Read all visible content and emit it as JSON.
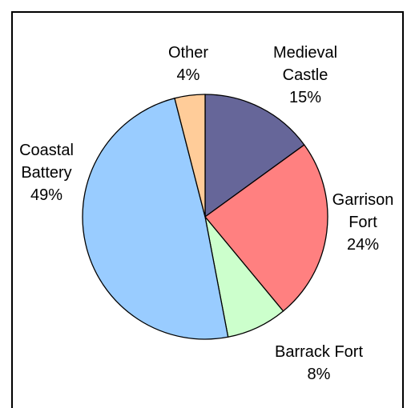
{
  "chart_data": {
    "type": "pie",
    "title": "",
    "slices": [
      {
        "label": "Medieval Castle",
        "label_lines": [
          "Medieval",
          "Castle"
        ],
        "value": 15,
        "value_text": "15%",
        "color": "#666699"
      },
      {
        "label": "Garrison Fort",
        "label_lines": [
          "Garrison",
          "Fort"
        ],
        "value": 24,
        "value_text": "24%",
        "color": "#ff8080"
      },
      {
        "label": "Barrack Fort",
        "label_lines": [
          "Barrack Fort"
        ],
        "value": 8,
        "value_text": "8%",
        "color": "#ccffcc"
      },
      {
        "label": "Coastal Battery",
        "label_lines": [
          "Coastal",
          "Battery"
        ],
        "value": 49,
        "value_text": "49%",
        "color": "#99ccff"
      },
      {
        "label": "Other",
        "label_lines": [
          "Other"
        ],
        "value": 4,
        "value_text": "4%",
        "color": "#ffcc99"
      }
    ],
    "start_angle_deg": 0,
    "direction": "clockwise",
    "legend": "none"
  }
}
